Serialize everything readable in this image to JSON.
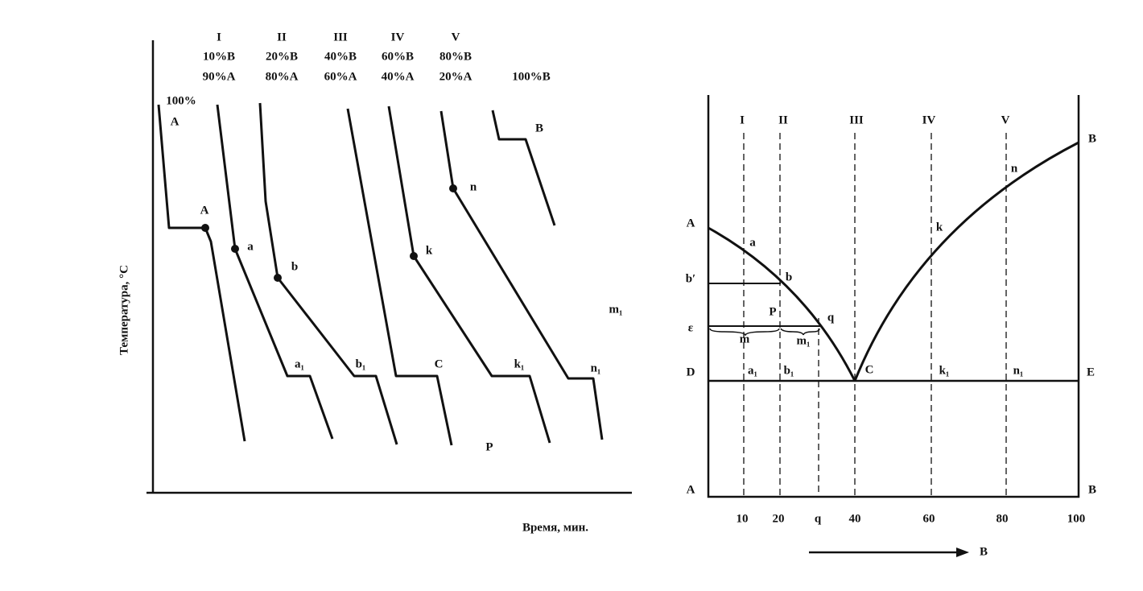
{
  "left": {
    "columns": [
      {
        "numeral": "I",
        "b": "10%B",
        "a": "90%A"
      },
      {
        "numeral": "II",
        "b": "20%B",
        "a": "80%A"
      },
      {
        "numeral": "III",
        "b": "40%B",
        "a": "60%A"
      },
      {
        "numeral": "IV",
        "b": "60%B",
        "a": "40%A"
      },
      {
        "numeral": "V",
        "b": "80%B",
        "a": "20%A"
      }
    ],
    "pure_b": "100%B",
    "pure_a": "100%",
    "points": [
      "A",
      "A",
      "a",
      "a₁",
      "b",
      "b₁",
      "C",
      "k",
      "k₁",
      "n",
      "n₁",
      "B",
      "m₁",
      "P"
    ],
    "y_label": "Температура, °C",
    "x_label": "Время, мин."
  },
  "right": {
    "numerals": [
      "I",
      "II",
      "III",
      "IV",
      "V"
    ],
    "points": [
      "B",
      "n",
      "A",
      "a",
      "k",
      "b′",
      "b",
      "P",
      "q",
      "ε",
      "m",
      "m₁",
      "D",
      "a₁",
      "b₁",
      "C",
      "k₁",
      "n₁",
      "E",
      "A",
      "B"
    ],
    "x_ticks": [
      "10",
      "20",
      "q",
      "40",
      "60",
      "80",
      "100"
    ],
    "arrow_label": "B"
  }
}
